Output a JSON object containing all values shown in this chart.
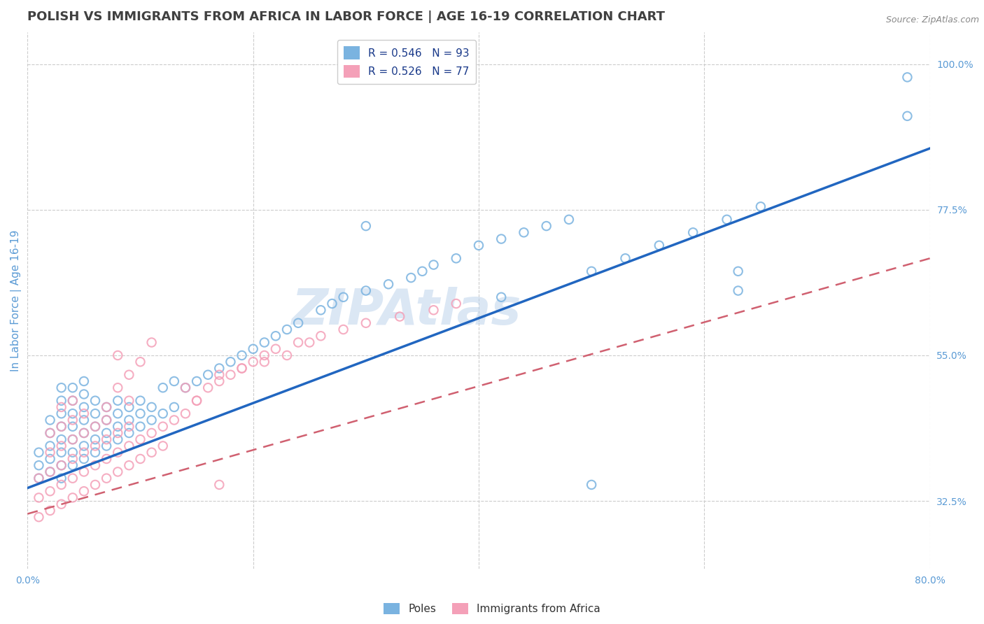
{
  "title": "POLISH VS IMMIGRANTS FROM AFRICA IN LABOR FORCE | AGE 16-19 CORRELATION CHART",
  "source": "Source: ZipAtlas.com",
  "ylabel": "In Labor Force | Age 16-19",
  "xlim": [
    0.0,
    0.8
  ],
  "ylim": [
    0.22,
    1.05
  ],
  "ytick_labels_right": [
    "32.5%",
    "55.0%",
    "77.5%",
    "100.0%"
  ],
  "yticks_right": [
    0.325,
    0.55,
    0.775,
    1.0
  ],
  "r_blue": 0.546,
  "n_blue": 93,
  "r_pink": 0.526,
  "n_pink": 77,
  "blue_color": "#7ab3e0",
  "pink_color": "#f4a0b8",
  "trend_blue": "#2166c0",
  "trend_pink": "#d06070",
  "grid_color": "#cccccc",
  "watermark": "ZIPAtlas",
  "watermark_color": "#b8d0ea",
  "title_color": "#404040",
  "axis_label_color": "#5b9bd5",
  "legend_text_color": "#1a3a8a",
  "poles_label": "Poles",
  "africa_label": "Immigrants from Africa",
  "trend_blue_x0": 0.0,
  "trend_blue_y0": 0.345,
  "trend_blue_x1": 0.8,
  "trend_blue_y1": 0.87,
  "trend_pink_x0": 0.0,
  "trend_pink_y0": 0.305,
  "trend_pink_x1": 0.8,
  "trend_pink_y1": 0.7,
  "blue_x": [
    0.01,
    0.01,
    0.01,
    0.02,
    0.02,
    0.02,
    0.02,
    0.02,
    0.03,
    0.03,
    0.03,
    0.03,
    0.03,
    0.03,
    0.03,
    0.03,
    0.04,
    0.04,
    0.04,
    0.04,
    0.04,
    0.04,
    0.04,
    0.05,
    0.05,
    0.05,
    0.05,
    0.05,
    0.05,
    0.05,
    0.06,
    0.06,
    0.06,
    0.06,
    0.06,
    0.07,
    0.07,
    0.07,
    0.07,
    0.08,
    0.08,
    0.08,
    0.08,
    0.09,
    0.09,
    0.09,
    0.1,
    0.1,
    0.1,
    0.11,
    0.11,
    0.12,
    0.12,
    0.13,
    0.13,
    0.14,
    0.15,
    0.16,
    0.17,
    0.18,
    0.19,
    0.2,
    0.21,
    0.22,
    0.23,
    0.24,
    0.26,
    0.27,
    0.28,
    0.3,
    0.32,
    0.34,
    0.35,
    0.36,
    0.38,
    0.4,
    0.42,
    0.44,
    0.46,
    0.48,
    0.5,
    0.53,
    0.56,
    0.59,
    0.62,
    0.65,
    0.3,
    0.42,
    0.63,
    0.63,
    0.78,
    0.5,
    0.78
  ],
  "blue_y": [
    0.36,
    0.38,
    0.4,
    0.37,
    0.39,
    0.41,
    0.43,
    0.45,
    0.36,
    0.38,
    0.4,
    0.42,
    0.44,
    0.46,
    0.48,
    0.5,
    0.38,
    0.4,
    0.42,
    0.44,
    0.46,
    0.48,
    0.5,
    0.39,
    0.41,
    0.43,
    0.45,
    0.47,
    0.49,
    0.51,
    0.4,
    0.42,
    0.44,
    0.46,
    0.48,
    0.41,
    0.43,
    0.45,
    0.47,
    0.42,
    0.44,
    0.46,
    0.48,
    0.43,
    0.45,
    0.47,
    0.44,
    0.46,
    0.48,
    0.45,
    0.47,
    0.46,
    0.5,
    0.47,
    0.51,
    0.5,
    0.51,
    0.52,
    0.53,
    0.54,
    0.55,
    0.56,
    0.57,
    0.58,
    0.59,
    0.6,
    0.62,
    0.63,
    0.64,
    0.65,
    0.66,
    0.67,
    0.68,
    0.69,
    0.7,
    0.72,
    0.73,
    0.74,
    0.75,
    0.76,
    0.68,
    0.7,
    0.72,
    0.74,
    0.76,
    0.78,
    0.75,
    0.64,
    0.65,
    0.68,
    0.98,
    0.35,
    0.92
  ],
  "pink_x": [
    0.01,
    0.01,
    0.01,
    0.02,
    0.02,
    0.02,
    0.02,
    0.02,
    0.03,
    0.03,
    0.03,
    0.03,
    0.03,
    0.03,
    0.04,
    0.04,
    0.04,
    0.04,
    0.04,
    0.04,
    0.05,
    0.05,
    0.05,
    0.05,
    0.05,
    0.06,
    0.06,
    0.06,
    0.06,
    0.07,
    0.07,
    0.07,
    0.07,
    0.08,
    0.08,
    0.08,
    0.09,
    0.09,
    0.09,
    0.1,
    0.1,
    0.11,
    0.11,
    0.12,
    0.12,
    0.13,
    0.14,
    0.15,
    0.16,
    0.17,
    0.18,
    0.19,
    0.2,
    0.21,
    0.22,
    0.24,
    0.26,
    0.28,
    0.3,
    0.33,
    0.36,
    0.38,
    0.14,
    0.15,
    0.17,
    0.19,
    0.21,
    0.23,
    0.25,
    0.07,
    0.08,
    0.09,
    0.08,
    0.09,
    0.1,
    0.11,
    0.17
  ],
  "pink_y": [
    0.3,
    0.33,
    0.36,
    0.31,
    0.34,
    0.37,
    0.4,
    0.43,
    0.32,
    0.35,
    0.38,
    0.41,
    0.44,
    0.47,
    0.33,
    0.36,
    0.39,
    0.42,
    0.45,
    0.48,
    0.34,
    0.37,
    0.4,
    0.43,
    0.46,
    0.35,
    0.38,
    0.41,
    0.44,
    0.36,
    0.39,
    0.42,
    0.45,
    0.37,
    0.4,
    0.43,
    0.38,
    0.41,
    0.44,
    0.39,
    0.42,
    0.4,
    0.43,
    0.41,
    0.44,
    0.45,
    0.46,
    0.48,
    0.5,
    0.51,
    0.52,
    0.53,
    0.54,
    0.55,
    0.56,
    0.57,
    0.58,
    0.59,
    0.6,
    0.61,
    0.62,
    0.63,
    0.5,
    0.48,
    0.52,
    0.53,
    0.54,
    0.55,
    0.57,
    0.47,
    0.5,
    0.48,
    0.55,
    0.52,
    0.54,
    0.57,
    0.35
  ]
}
